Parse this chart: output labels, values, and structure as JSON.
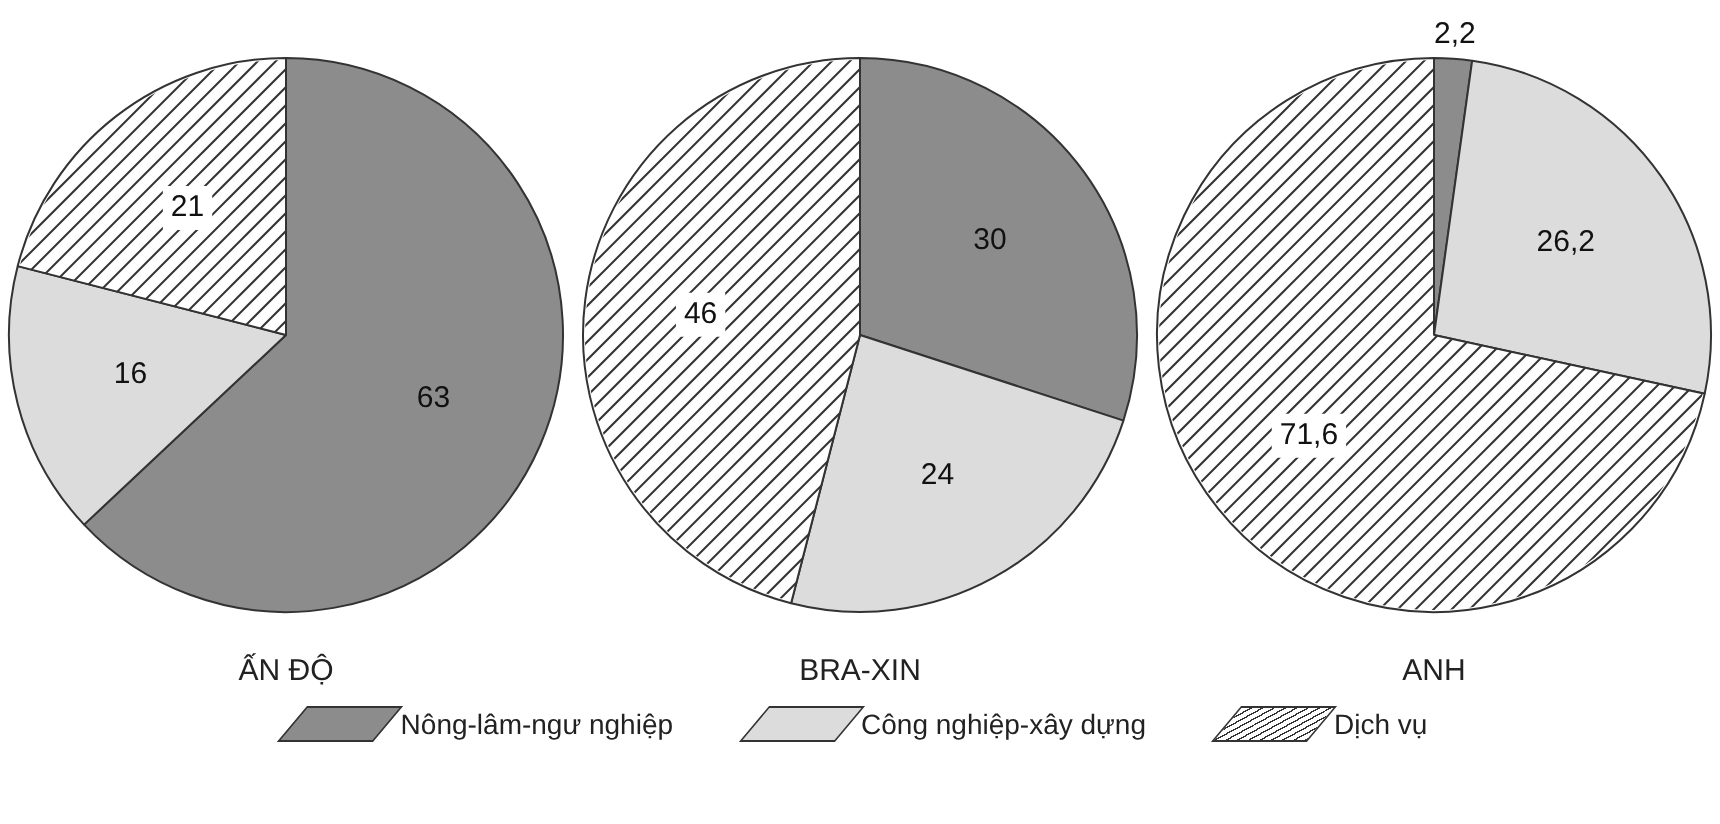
{
  "chart_data": [
    {
      "type": "pie",
      "title": "ẤN ĐỘ",
      "categories": [
        "Nông-lâm-ngư nghiệp",
        "Công nghiệp-xây dựng",
        "Dịch vụ"
      ],
      "values": [
        63,
        16,
        21
      ],
      "colors": [
        "#8c8c8c",
        "#dcdcdc",
        "#ffffff"
      ],
      "value_labels": [
        "63",
        "16",
        "21"
      ],
      "legend": "bottom"
    },
    {
      "type": "pie",
      "title": "BRA-XIN",
      "categories": [
        null,
        null,
        null
      ],
      "values": [
        30,
        24,
        46
      ],
      "colors": [
        "#8c8c8c",
        "#dcdcdc",
        "#ffffff"
      ],
      "value_labels": [
        "30",
        "24",
        "46"
      ]
    },
    {
      "type": "pie",
      "title": "ANH",
      "categories": [
        null,
        null,
        null
      ],
      "values": [
        2.2,
        26.2,
        71.6
      ],
      "colors": [
        "#8c8c8c",
        "#dcdcdc",
        "#ffffff"
      ],
      "value_labels": [
        "2,2",
        "26,2",
        "71,6"
      ]
    }
  ]
}
